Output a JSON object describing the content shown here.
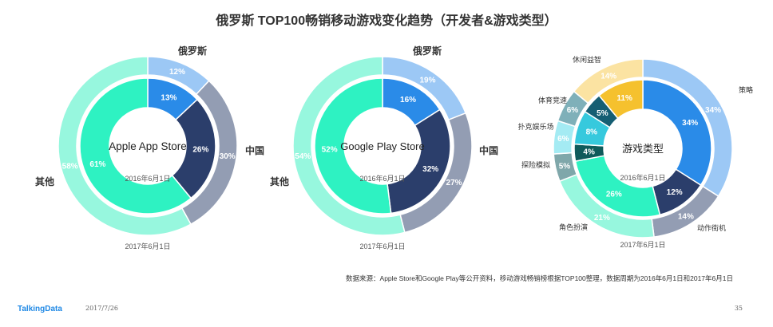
{
  "title": "俄罗斯 TOP100畅销移动游戏变化趋势（开发者&游戏类型）",
  "source_note": "数据来源：Apple Store和Google Play等公开资料，移动游戏畅销榜根据TOP100整理，数据周期为2016年6月1日和2017年6月1日",
  "footer": {
    "brand": "TalkingData",
    "date": "2017/7/26",
    "page": "35"
  },
  "chart_data": [
    {
      "type": "pie",
      "center_label": "Apple App Store",
      "inner_label": "2016年6月1日",
      "outer_label": "2017年6月1日",
      "categories": [
        "俄罗斯",
        "中国",
        "其他"
      ],
      "series": [
        {
          "name": "2016年6月1日",
          "values": [
            13,
            26,
            61
          ]
        },
        {
          "name": "2017年6月1日",
          "values": [
            12,
            30,
            58
          ]
        }
      ],
      "inner_colors": [
        "#2a8be8",
        "#2b3e6b",
        "#2ef2c2"
      ],
      "outer_colors": [
        "#9cc8f5",
        "#939db3",
        "#97f7de"
      ]
    },
    {
      "type": "pie",
      "center_label": "Google Play Store",
      "inner_label": "2016年6月1日",
      "outer_label": "2017年6月1日",
      "categories": [
        "俄罗斯",
        "中国",
        "其他"
      ],
      "series": [
        {
          "name": "2016年6月1日",
          "values": [
            16,
            32,
            52
          ]
        },
        {
          "name": "2017年6月1日",
          "values": [
            19,
            27,
            54
          ]
        }
      ],
      "inner_colors": [
        "#2a8be8",
        "#2b3e6b",
        "#2ef2c2"
      ],
      "outer_colors": [
        "#9cc8f5",
        "#939db3",
        "#97f7de"
      ]
    },
    {
      "type": "pie",
      "center_label": "游戏类型",
      "inner_label": "2016年6月1日",
      "outer_label": "2017年6月1日",
      "categories": [
        "策略",
        "动作街机",
        "角色扮演",
        "探险模拟",
        "扑克娱乐场",
        "体育竞速",
        "休闲益智"
      ],
      "series": [
        {
          "name": "2016年6月1日",
          "values": [
            34,
            12,
            26,
            4,
            8,
            5,
            11
          ]
        },
        {
          "name": "2017年6月1日",
          "values": [
            34,
            14,
            21,
            5,
            6,
            6,
            14
          ]
        }
      ],
      "inner_colors": [
        "#2a8be8",
        "#2b3e6b",
        "#2ef2c2",
        "#0f5a5a",
        "#36c9dd",
        "#155e73",
        "#f5c12e"
      ],
      "outer_colors": [
        "#9cc8f5",
        "#939db3",
        "#97f7de",
        "#7fa7aa",
        "#a4ebf3",
        "#7fb0b9",
        "#fbe3a2"
      ]
    }
  ]
}
